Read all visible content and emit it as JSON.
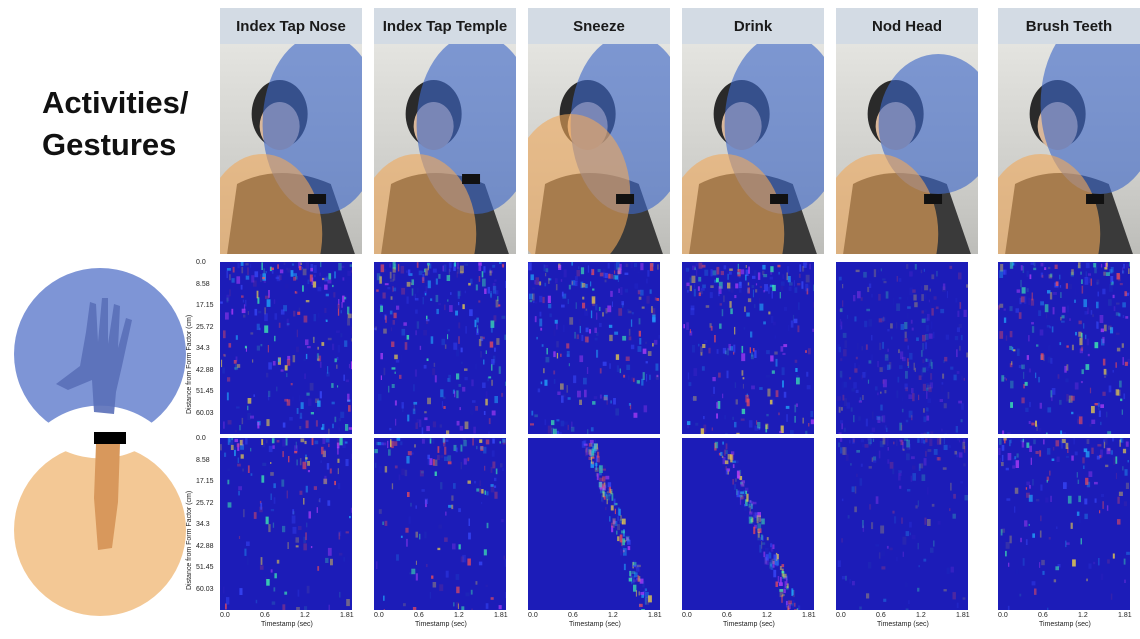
{
  "title": "Activities/\nGestures",
  "columns": [
    {
      "label": "Index Tap Nose"
    },
    {
      "label": "Index Tap Temple"
    },
    {
      "label": "Sneeze"
    },
    {
      "label": "Drink"
    },
    {
      "label": "Nod Head"
    },
    {
      "label": "Brush Teeth"
    }
  ],
  "y_axis": {
    "label": "Distance from Form Factor (cm)",
    "ticks": [
      "0.0",
      "8.58",
      "17.15",
      "25.72",
      "34.3",
      "42.88",
      "51.45",
      "60.03"
    ]
  },
  "x_axis": {
    "label": "Timestamp (sec)",
    "ticks": [
      "0.0",
      "0.6",
      "1.2",
      "1.81"
    ]
  },
  "colors": {
    "blue_zone": "#4a72c8",
    "orange_zone": "#f0b878",
    "header_bg": "#d3dbe4",
    "spectrogram_base": "#1c1cb8"
  }
}
